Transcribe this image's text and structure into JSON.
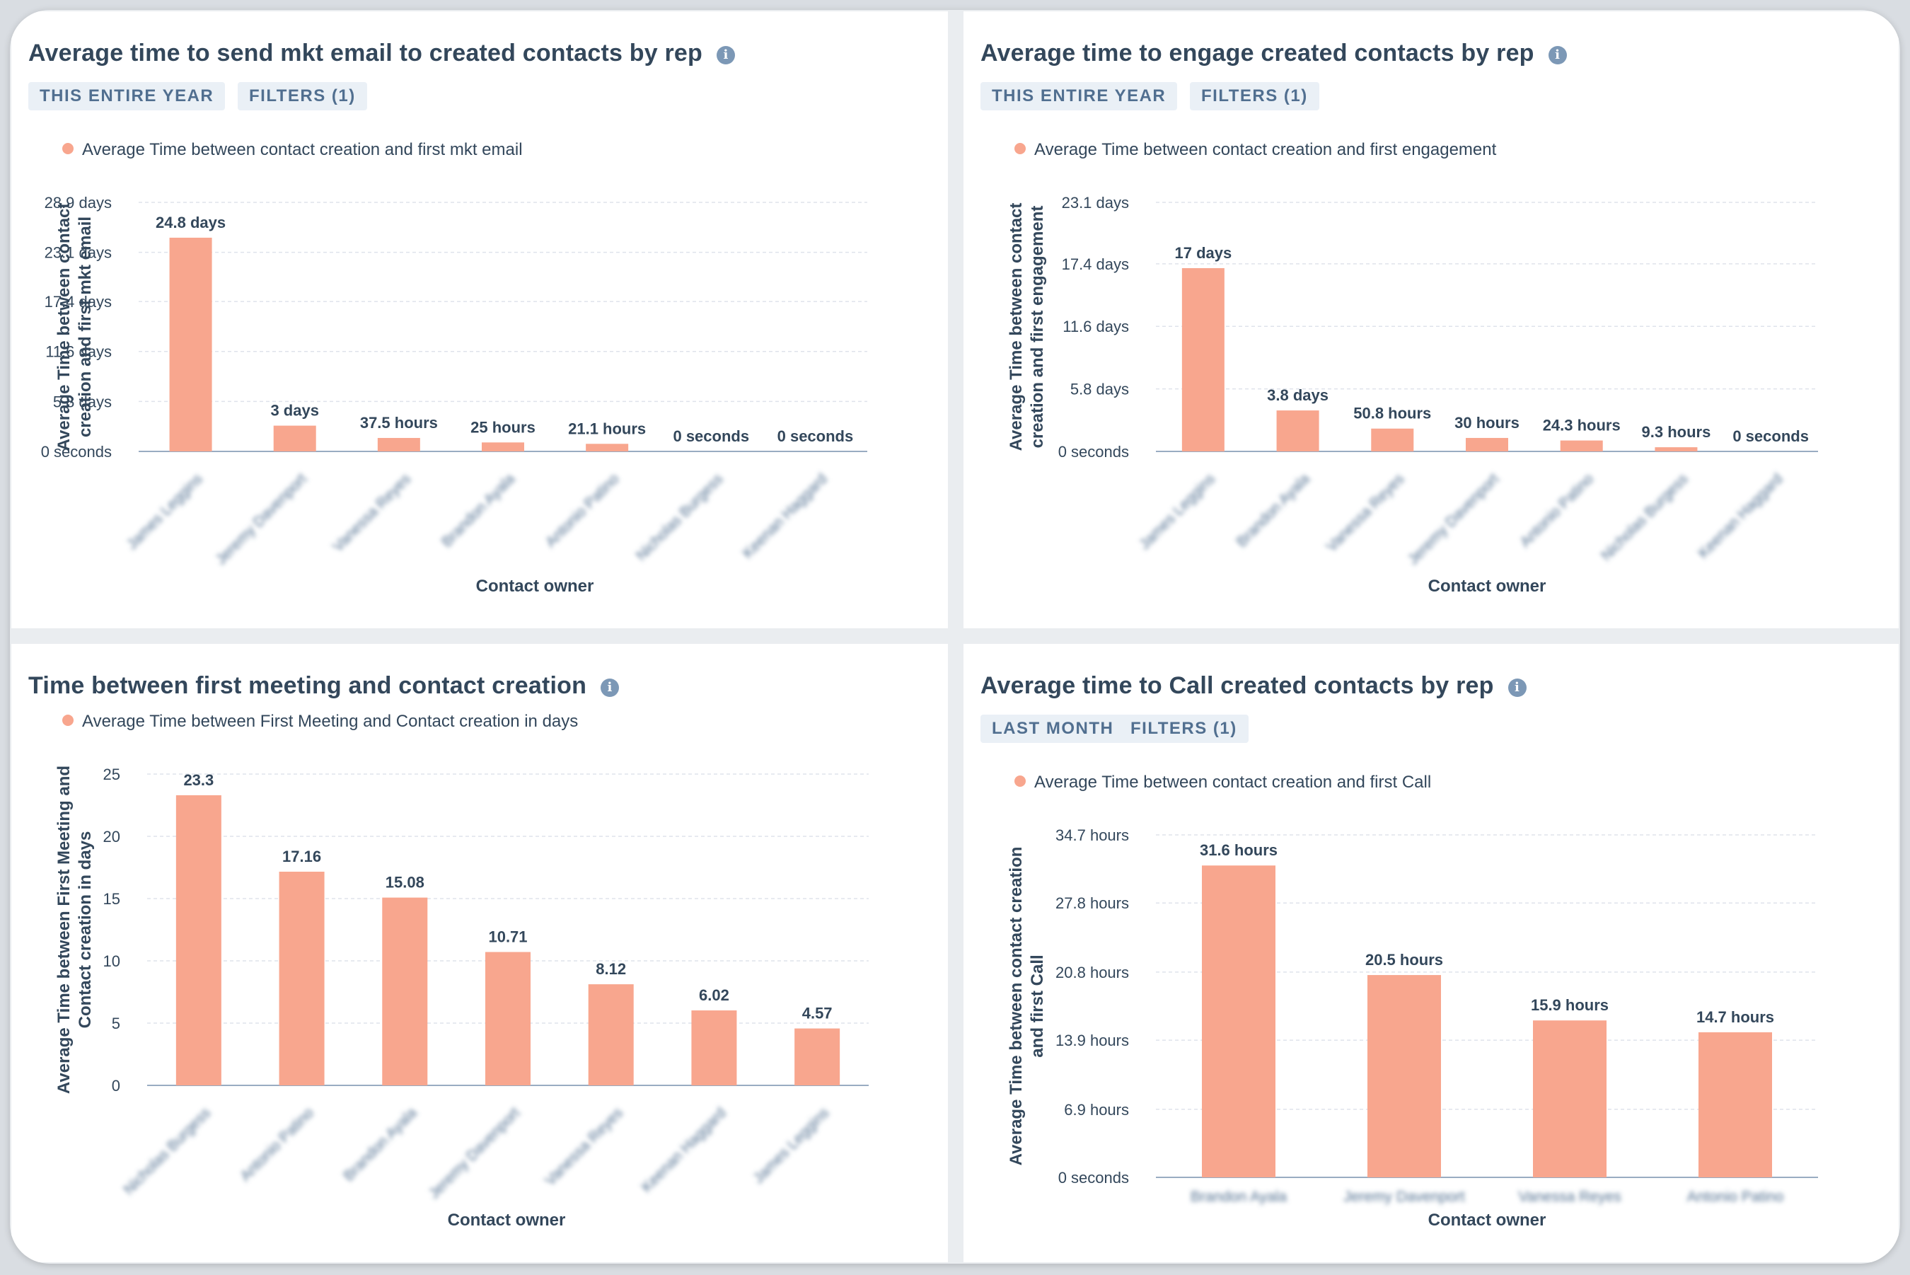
{
  "colors": {
    "bar": "#f8a68e",
    "text": "#33475b",
    "pill_bg": "#eaf0f6",
    "pill_text": "#516f90",
    "grid": "#dfe3eb",
    "axis": "#99acc2"
  },
  "panels": [
    {
      "title": "Average time to send mkt email to created contacts by rep",
      "info_icon": "info-icon",
      "pills": [
        "THIS ENTIRE YEAR",
        "FILTERS (1)"
      ],
      "legend": "Average Time between contact creation and first mkt email"
    },
    {
      "title": "Average time to engage created contacts by rep",
      "info_icon": "info-icon",
      "pills": [
        "THIS ENTIRE YEAR",
        "FILTERS (1)"
      ],
      "legend": "Average Time between contact creation and first engagement"
    },
    {
      "title": "Time between first meeting and contact creation",
      "info_icon": "info-icon",
      "pills": [],
      "legend": "Average Time between First Meeting and Contact creation in days"
    },
    {
      "title": "Average time to Call created contacts by rep",
      "info_icon": "info-icon",
      "pills": [
        "LAST MONTH",
        "FILTERS (1)"
      ],
      "legend": "Average Time between contact creation and first Call"
    }
  ],
  "chart_data": [
    {
      "type": "bar",
      "title": "Average time to send mkt email to created contacts by rep",
      "xlabel": "Contact owner",
      "ylabel": [
        "Average Time between contact",
        "creation and first mkt email"
      ],
      "unit": "days",
      "ylim": [
        0,
        28.9
      ],
      "yticks": [
        {
          "value": 0,
          "label": "0 seconds"
        },
        {
          "value": 5.8,
          "label": "5.8 days"
        },
        {
          "value": 11.6,
          "label": "11.6 days"
        },
        {
          "value": 17.4,
          "label": "17.4 days"
        },
        {
          "value": 23.1,
          "label": "23.1 days"
        },
        {
          "value": 28.9,
          "label": "28.9 days"
        }
      ],
      "categories": [
        "James Leggins",
        "Jeremy Davenport",
        "Vanessa Reyes",
        "Brandon Ayala",
        "Antonio Patino",
        "Nicholas Burgess",
        "Keenan Haggard"
      ],
      "values": [
        24.8,
        2.99,
        1.5625,
        1.0417,
        0.879,
        0,
        0
      ],
      "value_labels": [
        "24.8 days",
        "3 days",
        "37.5 hours",
        "25 hours",
        "21.1 hours",
        "0 seconds",
        "0 seconds"
      ],
      "grid": true,
      "legend_position": "top-left"
    },
    {
      "type": "bar",
      "title": "Average time to engage created contacts by rep",
      "xlabel": "Contact owner",
      "ylabel": [
        "Average Time between contact",
        "creation and first engagement"
      ],
      "unit": "days",
      "ylim": [
        0,
        23.1
      ],
      "yticks": [
        {
          "value": 0,
          "label": "0 seconds"
        },
        {
          "value": 5.8,
          "label": "5.8 days"
        },
        {
          "value": 11.6,
          "label": "11.6 days"
        },
        {
          "value": 17.4,
          "label": "17.4 days"
        },
        {
          "value": 23.1,
          "label": "23.1 days"
        }
      ],
      "categories": [
        "James Leggins",
        "Brandon Ayala",
        "Vanessa Reyes",
        "Jeremy Davenport",
        "Antonio Patino",
        "Nicholas Burgess",
        "Keenan Haggard"
      ],
      "values": [
        17,
        3.8,
        2.117,
        1.25,
        1.0125,
        0.3875,
        0
      ],
      "value_labels": [
        "17 days",
        "3.8 days",
        "50.8 hours",
        "30 hours",
        "24.3 hours",
        "9.3 hours",
        "0 seconds"
      ],
      "grid": true,
      "legend_position": "top-left"
    },
    {
      "type": "bar",
      "title": "Time between first meeting and contact creation",
      "xlabel": "Contact owner",
      "ylabel": [
        "Average Time between First Meeting and",
        "Contact creation in days"
      ],
      "unit": "days",
      "ylim": [
        0,
        25
      ],
      "yticks": [
        {
          "value": 0,
          "label": "0"
        },
        {
          "value": 5,
          "label": "5"
        },
        {
          "value": 10,
          "label": "10"
        },
        {
          "value": 15,
          "label": "15"
        },
        {
          "value": 20,
          "label": "20"
        },
        {
          "value": 25,
          "label": "25"
        }
      ],
      "categories": [
        "Nicholas Burgess",
        "Antonio Patino",
        "Brandon Ayala",
        "Jeremy Davenport",
        "Vanessa Reyes",
        "Keenan Haggard",
        "James Leggins"
      ],
      "values": [
        23.3,
        17.16,
        15.08,
        10.71,
        8.12,
        6.02,
        4.57
      ],
      "value_labels": [
        "23.3",
        "17.16",
        "15.08",
        "10.71",
        "8.12",
        "6.02",
        "4.57"
      ],
      "grid": true,
      "legend_position": "top-left"
    },
    {
      "type": "bar",
      "title": "Average time to Call created contacts by rep",
      "xlabel": "Contact owner",
      "ylabel": [
        "Average Time between contact creation",
        "and first Call"
      ],
      "unit": "hours",
      "ylim": [
        0,
        34.7
      ],
      "yticks": [
        {
          "value": 0,
          "label": "0 seconds"
        },
        {
          "value": 6.9,
          "label": "6.9 hours"
        },
        {
          "value": 13.9,
          "label": "13.9 hours"
        },
        {
          "value": 20.8,
          "label": "20.8 hours"
        },
        {
          "value": 27.8,
          "label": "27.8 hours"
        },
        {
          "value": 34.7,
          "label": "34.7 hours"
        }
      ],
      "categories": [
        "Brandon Ayala",
        "Jeremy Davenport",
        "Vanessa Reyes",
        "Antonio Patino"
      ],
      "values": [
        31.6,
        20.5,
        15.9,
        14.7
      ],
      "value_labels": [
        "31.6 hours",
        "20.5 hours",
        "15.9 hours",
        "14.7 hours"
      ],
      "grid": true,
      "legend_position": "top-left"
    }
  ]
}
